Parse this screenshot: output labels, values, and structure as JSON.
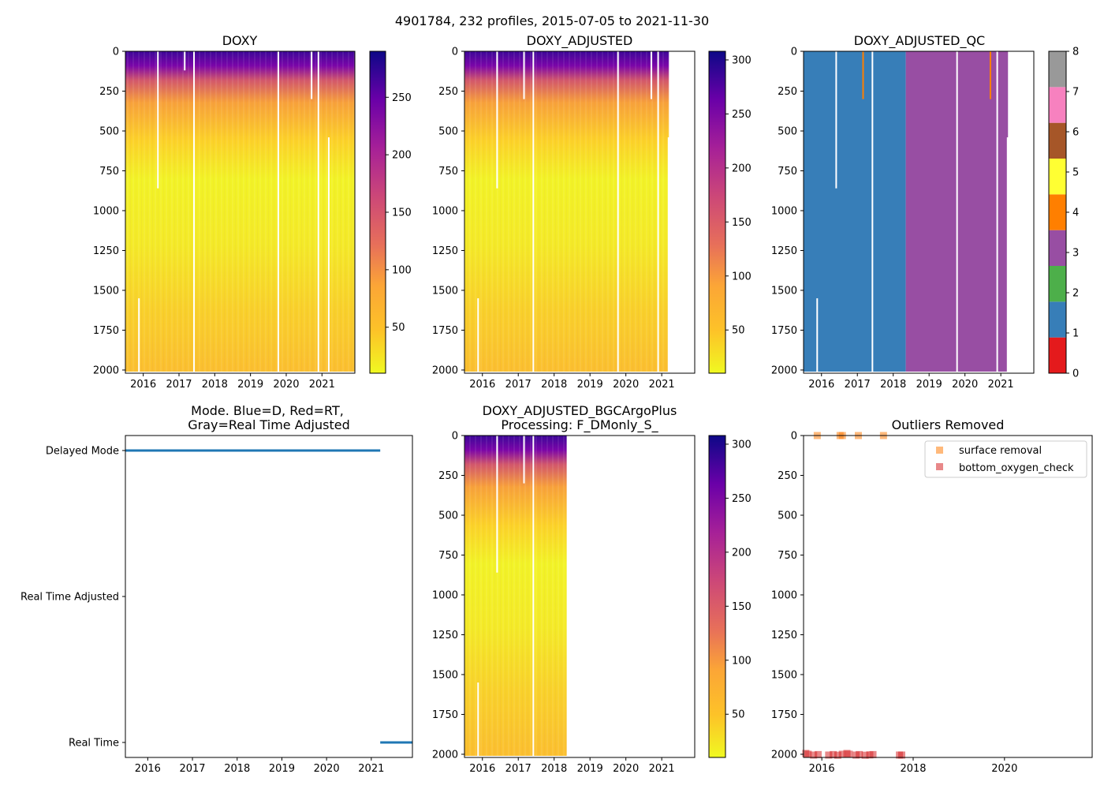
{
  "figure": {
    "suptitle": "4901784, 232 profiles, 2015-07-05 to 2021-11-30"
  },
  "chart_data": [
    {
      "id": "doxy",
      "type": "heatmap",
      "title": "DOXY",
      "x_tick_labels": [
        "2016",
        "2017",
        "2018",
        "2019",
        "2020",
        "2021"
      ],
      "x_tick_values": [
        2016,
        2017,
        2018,
        2019,
        2020,
        2021
      ],
      "xlim": [
        2015.5,
        2021.92
      ],
      "y_tick_labels": [
        "0",
        "250",
        "500",
        "750",
        "1000",
        "1250",
        "1500",
        "1750",
        "2000"
      ],
      "y_tick_values": [
        0,
        250,
        500,
        750,
        1000,
        1250,
        1500,
        1750,
        2000
      ],
      "ylim": [
        2020,
        0
      ],
      "data_end_year": 2021.92,
      "colorbar": {
        "colormap": "plasma_r",
        "range": [
          10,
          290
        ],
        "tick_labels": [
          "50",
          "100",
          "150",
          "200",
          "250"
        ],
        "tick_values": [
          50,
          100,
          150,
          200,
          250
        ]
      },
      "profile_gaps": [
        {
          "year": 2015.88,
          "from_depth": 1550,
          "to_depth": 2010
        },
        {
          "year": 2016.41,
          "from_depth": 0,
          "to_depth": 860
        },
        {
          "year": 2017.16,
          "from_depth": 0,
          "to_depth": 120
        },
        {
          "year": 2017.42,
          "from_depth": 0,
          "to_depth": 2010
        },
        {
          "year": 2019.78,
          "from_depth": 0,
          "to_depth": 2010
        },
        {
          "year": 2020.71,
          "from_depth": 0,
          "to_depth": 300
        },
        {
          "year": 2020.9,
          "from_depth": 0,
          "to_depth": 2010
        },
        {
          "year": 2021.19,
          "from_depth": 540,
          "to_depth": 2020
        }
      ]
    },
    {
      "id": "doxy-adjusted",
      "type": "heatmap",
      "title": "DOXY_ADJUSTED",
      "x_tick_labels": [
        "2016",
        "2017",
        "2018",
        "2019",
        "2020",
        "2021"
      ],
      "x_tick_values": [
        2016,
        2017,
        2018,
        2019,
        2020,
        2021
      ],
      "xlim": [
        2015.5,
        2021.92
      ],
      "y_tick_labels": [
        "0",
        "250",
        "500",
        "750",
        "1000",
        "1250",
        "1500",
        "1750",
        "2000"
      ],
      "y_tick_values": [
        0,
        250,
        500,
        750,
        1000,
        1250,
        1500,
        1750,
        2000
      ],
      "ylim": [
        2020,
        0
      ],
      "data_end_year": 2021.2,
      "colorbar": {
        "colormap": "plasma_r",
        "range": [
          10,
          308
        ],
        "tick_labels": [
          "50",
          "100",
          "150",
          "200",
          "250",
          "300"
        ],
        "tick_values": [
          50,
          100,
          150,
          200,
          250,
          300
        ]
      },
      "profile_gaps": [
        {
          "year": 2015.88,
          "from_depth": 1550,
          "to_depth": 2010
        },
        {
          "year": 2016.41,
          "from_depth": 0,
          "to_depth": 860
        },
        {
          "year": 2017.16,
          "from_depth": 0,
          "to_depth": 300
        },
        {
          "year": 2017.42,
          "from_depth": 0,
          "to_depth": 2010
        },
        {
          "year": 2019.78,
          "from_depth": 0,
          "to_depth": 2010
        },
        {
          "year": 2020.71,
          "from_depth": 0,
          "to_depth": 300
        },
        {
          "year": 2020.9,
          "from_depth": 0,
          "to_depth": 2010
        },
        {
          "year": 2021.19,
          "from_depth": 540,
          "to_depth": 2020
        }
      ]
    },
    {
      "id": "doxy-adjusted-qc",
      "type": "heatmap",
      "title": "DOXY_ADJUSTED_QC",
      "x_tick_labels": [
        "2016",
        "2017",
        "2018",
        "2019",
        "2020",
        "2021"
      ],
      "x_tick_values": [
        2016,
        2017,
        2018,
        2019,
        2020,
        2021
      ],
      "xlim": [
        2015.5,
        2021.92
      ],
      "y_tick_labels": [
        "0",
        "250",
        "500",
        "750",
        "1000",
        "1250",
        "1500",
        "1750",
        "2000"
      ],
      "y_tick_values": [
        0,
        250,
        500,
        750,
        1000,
        1250,
        1500,
        1750,
        2000
      ],
      "ylim": [
        2020,
        0
      ],
      "qc_segments": [
        {
          "from_year": 2015.5,
          "to_year": 2018.35,
          "flag": 1
        },
        {
          "from_year": 2018.35,
          "to_year": 2021.2,
          "flag": 3
        }
      ],
      "qc_flag4_lines": [
        {
          "year": 2017.16,
          "from_depth": 0,
          "to_depth": 300
        },
        {
          "year": 2020.71,
          "from_depth": 0,
          "to_depth": 300
        }
      ],
      "profile_gaps": [
        {
          "year": 2015.88,
          "from_depth": 1550,
          "to_depth": 2010
        },
        {
          "year": 2016.41,
          "from_depth": 0,
          "to_depth": 860
        },
        {
          "year": 2017.42,
          "from_depth": 0,
          "to_depth": 2010
        },
        {
          "year": 2019.78,
          "from_depth": 0,
          "to_depth": 2010
        },
        {
          "year": 2020.9,
          "from_depth": 0,
          "to_depth": 2010
        },
        {
          "year": 2021.19,
          "from_depth": 540,
          "to_depth": 2020
        }
      ],
      "colorbar": {
        "colormap": "qc_flags",
        "range": [
          0,
          8
        ],
        "tick_labels": [
          "0",
          "1",
          "2",
          "3",
          "4",
          "5",
          "6",
          "7",
          "8"
        ],
        "tick_values": [
          0,
          1,
          2,
          3,
          4,
          5,
          6,
          7,
          8
        ],
        "segment_colors": [
          "#e41a1c",
          "#377eb8",
          "#4daf4a",
          "#984ea3",
          "#ff7f00",
          "#ffff33",
          "#a65628",
          "#f781bf",
          "#999999"
        ]
      }
    },
    {
      "id": "mode",
      "type": "line",
      "title": "Mode. Blue=D, Red=RT,",
      "title_line2": "Gray=Real Time Adjusted",
      "x_tick_labels": [
        "2016",
        "2017",
        "2018",
        "2019",
        "2020",
        "2021"
      ],
      "x_tick_values": [
        2016,
        2017,
        2018,
        2019,
        2020,
        2021
      ],
      "xlim": [
        2015.5,
        2021.92
      ],
      "categories": [
        "Delayed Mode",
        "Real Time Adjusted",
        "Real Time"
      ],
      "segments": [
        {
          "category": "Delayed Mode",
          "from_year": 2015.5,
          "to_year": 2021.2
        },
        {
          "category": "Real Time",
          "from_year": 2021.2,
          "to_year": 2021.92
        }
      ],
      "line_color": "#1f77b4"
    },
    {
      "id": "bgcargoplus",
      "type": "heatmap",
      "title": "DOXY_ADJUSTED_BGCArgoPlus",
      "title_line2": "Processing: F_DMonly_S_",
      "x_tick_labels": [
        "2016",
        "2017",
        "2018",
        "2019",
        "2020",
        "2021"
      ],
      "x_tick_values": [
        2016,
        2017,
        2018,
        2019,
        2020,
        2021
      ],
      "xlim": [
        2015.5,
        2021.92
      ],
      "y_tick_labels": [
        "0",
        "250",
        "500",
        "750",
        "1000",
        "1250",
        "1500",
        "1750",
        "2000"
      ],
      "y_tick_values": [
        0,
        250,
        500,
        750,
        1000,
        1250,
        1500,
        1750,
        2000
      ],
      "ylim": [
        2020,
        0
      ],
      "data_end_year": 2018.35,
      "colorbar": {
        "colormap": "plasma_r",
        "range": [
          10,
          308
        ],
        "tick_labels": [
          "50",
          "100",
          "150",
          "200",
          "250",
          "300"
        ],
        "tick_values": [
          50,
          100,
          150,
          200,
          250,
          300
        ]
      },
      "profile_gaps": [
        {
          "year": 2015.88,
          "from_depth": 1550,
          "to_depth": 2010
        },
        {
          "year": 2016.41,
          "from_depth": 0,
          "to_depth": 860
        },
        {
          "year": 2017.16,
          "from_depth": 0,
          "to_depth": 300
        },
        {
          "year": 2017.42,
          "from_depth": 0,
          "to_depth": 2010
        }
      ]
    },
    {
      "id": "outliers",
      "type": "scatter",
      "title": "Outliers Removed",
      "x_tick_labels": [
        "2016",
        "2018",
        "2020"
      ],
      "x_tick_values": [
        2016,
        2018,
        2020
      ],
      "xlim": [
        2015.6,
        2021.92
      ],
      "y_tick_labels": [
        "0",
        "250",
        "500",
        "750",
        "1000",
        "1250",
        "1500",
        "1750",
        "2000"
      ],
      "y_tick_values": [
        0,
        250,
        500,
        750,
        1000,
        1250,
        1500,
        1750,
        2000
      ],
      "ylim": [
        2020,
        0
      ],
      "series": [
        {
          "name": "surface removal",
          "color": "#ff7f0e",
          "points": [
            [
              2015.9,
              0
            ],
            [
              2016.4,
              0
            ],
            [
              2016.45,
              0
            ],
            [
              2016.8,
              0
            ],
            [
              2017.35,
              0
            ]
          ]
        },
        {
          "name": "bottom_oxygen_check",
          "color": "#d62728",
          "points": [
            [
              2015.65,
              1995
            ],
            [
              2015.7,
              2000
            ],
            [
              2015.82,
              2005
            ],
            [
              2015.92,
              2002
            ],
            [
              2016.15,
              2005
            ],
            [
              2016.25,
              2002
            ],
            [
              2016.35,
              2006
            ],
            [
              2016.45,
              2000
            ],
            [
              2016.55,
              1995
            ],
            [
              2016.6,
              2000
            ],
            [
              2016.75,
              2005
            ],
            [
              2016.82,
              2002
            ],
            [
              2016.95,
              2006
            ],
            [
              2017.05,
              2004
            ],
            [
              2017.12,
              2002
            ],
            [
              2017.7,
              2005
            ],
            [
              2017.75,
              2005
            ]
          ]
        }
      ],
      "legend_position": "top-right"
    }
  ]
}
